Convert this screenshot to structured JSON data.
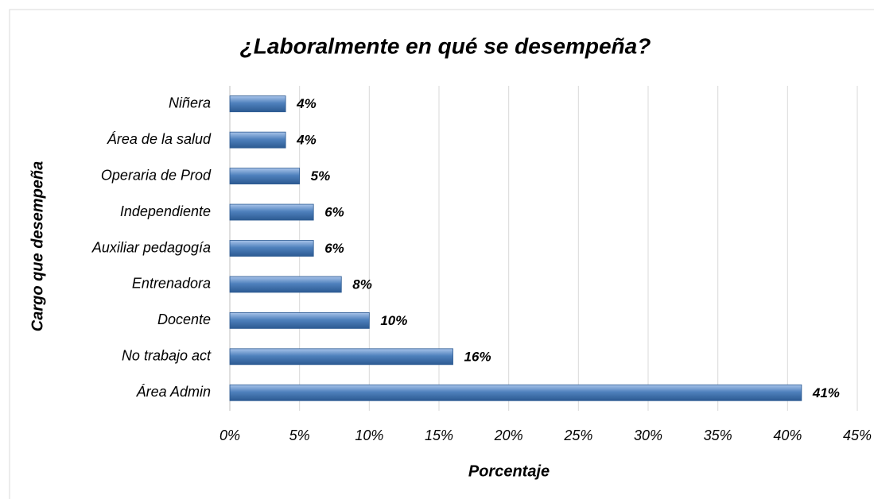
{
  "chart_data": {
    "type": "bar",
    "orientation": "horizontal",
    "title": "¿Laboralmente en qué se desempeña?",
    "x_label": "Porcentaje",
    "y_label": "Cargo que desempeña",
    "categories": [
      "Niñera",
      "Área de la salud",
      "Operaria de Prod",
      "Independiente",
      "Auxiliar pedagogía",
      "Entrenadora",
      "Docente",
      "No trabajo act",
      "Área Admin"
    ],
    "values": [
      4,
      4,
      5,
      6,
      6,
      8,
      10,
      16,
      41
    ],
    "value_labels": [
      "4%",
      "4%",
      "5%",
      "6%",
      "6%",
      "8%",
      "10%",
      "16%",
      "41%"
    ],
    "color": "#4f81bd",
    "xlim": [
      0,
      45
    ],
    "xticks": [
      {
        "value": 0,
        "label": "0%"
      },
      {
        "value": 5,
        "label": "5%"
      },
      {
        "value": 10,
        "label": "10%"
      },
      {
        "value": 15,
        "label": "15%"
      },
      {
        "value": 20,
        "label": "20%"
      },
      {
        "value": 25,
        "label": "25%"
      },
      {
        "value": 30,
        "label": "30%"
      },
      {
        "value": 35,
        "label": "35%"
      },
      {
        "value": 40,
        "label": "40%"
      },
      {
        "value": 45,
        "label": "45%"
      }
    ],
    "grid": true
  }
}
